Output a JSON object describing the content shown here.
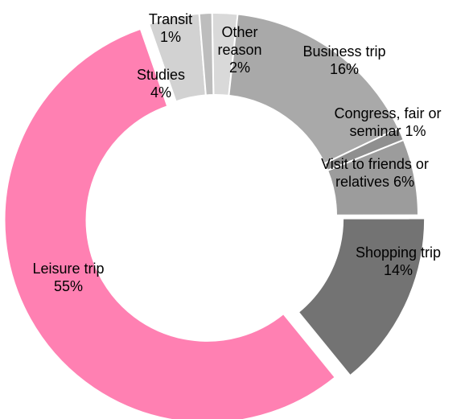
{
  "chart_data": {
    "type": "donut",
    "categories": [
      "Other reason",
      "Business trip",
      "Congress, fair or seminar",
      "Visit to friends or relatives",
      "Shopping trip",
      "Leisure trip",
      "Studies",
      "Transit"
    ],
    "values": [
      2,
      16,
      1,
      6,
      14,
      55,
      4,
      1
    ],
    "value_labels": [
      "2%",
      "16%",
      "1%",
      "6%",
      "14%",
      "55%",
      "4%",
      "1%"
    ],
    "colors": [
      "#d9d9d9",
      "#a9a9a9",
      "#8f8f8f",
      "#9c9c9c",
      "#737373",
      "#ff80b2",
      "#d2d2d2",
      "#bdbdbd"
    ]
  }
}
